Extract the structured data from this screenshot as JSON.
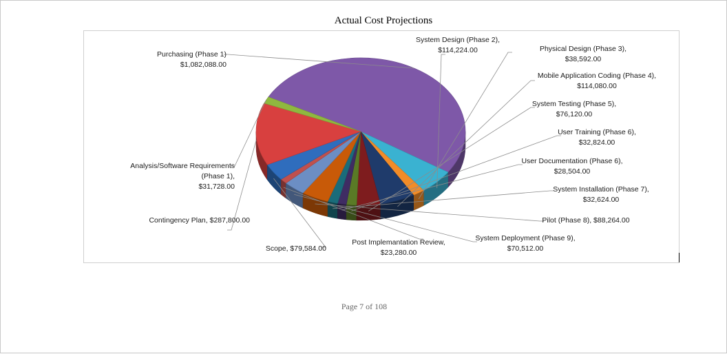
{
  "document": {
    "footer": "Page 7 of 108"
  },
  "chart_data": {
    "type": "pie",
    "title": "Actual Cost Projections",
    "three_d": true,
    "series": [
      {
        "name": "Purchasing (Phase 1)",
        "value": 1082088.0,
        "color": "#7e58a8",
        "label_lines": [
          "Purchasing (Phase 1)",
          "$1,082,088.00"
        ]
      },
      {
        "name": "System Design (Phase 2)",
        "value": 114224.0,
        "color": "#3ab2d1",
        "label_lines": [
          "System Design (Phase 2),",
          "$114,224.00"
        ]
      },
      {
        "name": "Physical Design (Phase 3)",
        "value": 38592.0,
        "color": "#f28c28",
        "label_lines": [
          "Physical Design (Phase 3),",
          "$38,592.00"
        ]
      },
      {
        "name": "Mobile Application Coding (Phase 4)",
        "value": 114080.0,
        "color": "#1f3b6b",
        "label_lines": [
          "Mobile Application Coding (Phase 4),",
          "$114,080.00"
        ]
      },
      {
        "name": "System Testing (Phase 5)",
        "value": 76120.0,
        "color": "#7e1c1e",
        "label_lines": [
          "System Testing (Phase 5),",
          "$76,120.00"
        ]
      },
      {
        "name": "User Training (Phase 6)",
        "value": 32824.0,
        "color": "#5a7a26",
        "label_lines": [
          "User Training (Phase 6),",
          "$32,824.00"
        ]
      },
      {
        "name": "User Documentation (Phase 6)",
        "value": 28504.0,
        "color": "#3f2c63",
        "label_lines": [
          "User Documentation (Phase 6),",
          "$28,504.00"
        ]
      },
      {
        "name": "System Installation (Phase 7)",
        "value": 32624.0,
        "color": "#1a6c7a",
        "label_lines": [
          "System Installation (Phase 7),",
          "$32,624.00"
        ]
      },
      {
        "name": "Pilot (Phase 8)",
        "value": 88264.0,
        "color": "#c85a08",
        "label_lines": [
          "Pilot (Phase 8), $88,264.00"
        ]
      },
      {
        "name": "System Deployment (Phase 9)",
        "value": 70512.0,
        "color": "#6c8ec4",
        "label_lines": [
          "System Deployment (Phase 9),",
          "$70,512.00"
        ]
      },
      {
        "name": "Post Implemantation Review",
        "value": 23280.0,
        "color": "#c0504d",
        "label_lines": [
          "Post Implemantation Review,",
          "$23,280.00"
        ]
      },
      {
        "name": "Scope",
        "value": 79584.0,
        "color": "#2f6dbd",
        "label_lines": [
          "Scope, $79,584.00"
        ]
      },
      {
        "name": "Contingency Plan",
        "value": 287800.0,
        "color": "#d8403f",
        "label_lines": [
          "Contingency Plan, $287,800.00"
        ]
      },
      {
        "name": "Analysis/Software Requirements (Phase 1)",
        "value": 31728.0,
        "color": "#8fb83f",
        "label_lines": [
          "Analysis/Software Requirements",
          "(Phase 1),",
          "$31,728.00"
        ]
      }
    ]
  }
}
